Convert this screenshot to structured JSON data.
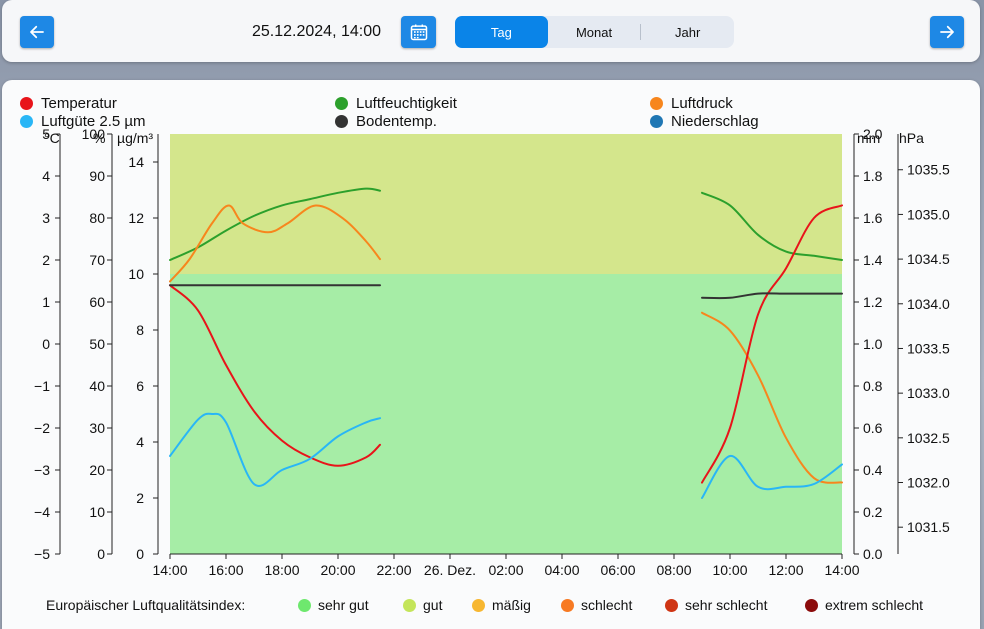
{
  "header": {
    "prev_label": "previous",
    "next_label": "next",
    "date_text": "25.12.2024, 14:00",
    "tabs": [
      {
        "label": "Tag",
        "active": true
      },
      {
        "label": "Monat",
        "active": false
      },
      {
        "label": "Jahr",
        "active": false
      }
    ],
    "icons": {
      "prev": "arrow-left-icon",
      "next": "arrow-right-icon",
      "calendar": "calendar-icon"
    }
  },
  "legend": [
    {
      "label": "Temperatur",
      "color": "#e8141a"
    },
    {
      "label": "Luftfeuchtigkeit",
      "color": "#2ca02c"
    },
    {
      "label": "Luftdruck",
      "color": "#f7861d"
    },
    {
      "label": "Luftgüte 2.5 µm",
      "color": "#29b6f6"
    },
    {
      "label": "Bodentemp.",
      "color": "#333333"
    },
    {
      "label": "Niederschlag",
      "color": "#1f77b4"
    }
  ],
  "axis_units": {
    "temp": "°C",
    "hum": "%",
    "pm": "µg/m³",
    "rain": "mm",
    "press": "hPa"
  },
  "aqi": {
    "title": "Europäischer Luftqualitätsindex:",
    "items": [
      {
        "label": "sehr gut",
        "color": "#6ee86e"
      },
      {
        "label": "gut",
        "color": "#c4e55a"
      },
      {
        "label": "mäßig",
        "color": "#f7b731"
      },
      {
        "label": "schlecht",
        "color": "#f77a23"
      },
      {
        "label": "sehr schlecht",
        "color": "#cf3514"
      },
      {
        "label": "extrem schlecht",
        "color": "#8b0b0b"
      }
    ]
  },
  "chart_data": {
    "type": "line",
    "x_ticks": [
      "14:00",
      "16:00",
      "18:00",
      "20:00",
      "22:00",
      "26. Dez.",
      "02:00",
      "04:00",
      "06:00",
      "08:00",
      "10:00",
      "12:00",
      "14:00"
    ],
    "xlim": [
      0,
      24
    ],
    "axes": {
      "temp": {
        "unit": "°C",
        "ylim": [
          -5,
          5
        ],
        "ticks": [
          "5",
          "4",
          "3",
          "2",
          "1",
          "0",
          "−1",
          "−2",
          "−3",
          "−4",
          "−5"
        ]
      },
      "hum": {
        "unit": "%",
        "ylim": [
          0,
          100
        ],
        "ticks": [
          "100",
          "90",
          "80",
          "70",
          "60",
          "50",
          "40",
          "30",
          "20",
          "10",
          "0"
        ]
      },
      "pm": {
        "unit": "µg/m³",
        "ylim": [
          0,
          15
        ],
        "ticks": [
          "14",
          "12",
          "10",
          "8",
          "6",
          "4",
          "2",
          "0"
        ]
      },
      "rain": {
        "unit": "mm",
        "ylim": [
          0,
          2.0
        ],
        "ticks": [
          "2.0",
          "1.8",
          "1.6",
          "1.4",
          "1.2",
          "1.0",
          "0.8",
          "0.6",
          "0.4",
          "0.2",
          "0.0"
        ]
      },
      "press": {
        "unit": "hPa",
        "ylim": [
          1031.2,
          1035.9
        ],
        "ticks": [
          "1035.5",
          "1035.0",
          "1034.5",
          "1034.0",
          "1033.5",
          "1033.0",
          "1032.5",
          "1032.0",
          "1031.5"
        ]
      }
    },
    "aqi_bands": [
      {
        "from": 0,
        "to": 10,
        "color": "#a6eda6"
      },
      {
        "from": 10,
        "to": 15,
        "color": "#d4e68c"
      }
    ],
    "series": [
      {
        "name": "Luftfeuchtigkeit",
        "axis": "hum",
        "color": "#2ca02c",
        "segments": [
          [
            [
              0,
              70.0
            ],
            [
              1,
              73.0
            ],
            [
              2,
              77.0
            ],
            [
              3,
              80.5
            ],
            [
              4,
              83.0
            ],
            [
              5,
              84.5
            ],
            [
              6,
              86.0
            ],
            [
              7,
              87.0
            ],
            [
              7.5,
              86.5
            ]
          ],
          [
            [
              19,
              86.0
            ],
            [
              20,
              83.0
            ],
            [
              21,
              76.0
            ],
            [
              22,
              72.0
            ],
            [
              23,
              71.0
            ],
            [
              24,
              70.0
            ]
          ]
        ]
      },
      {
        "name": "Luftdruck",
        "axis": "press",
        "color": "#f7861d",
        "segments": [
          [
            [
              0,
              1034.25
            ],
            [
              0.7,
              1034.5
            ],
            [
              1.5,
              1034.9
            ],
            [
              2.1,
              1035.1
            ],
            [
              2.6,
              1034.9
            ],
            [
              3.5,
              1034.8
            ],
            [
              4.2,
              1034.9
            ],
            [
              5.2,
              1035.1
            ],
            [
              6.2,
              1034.95
            ],
            [
              7,
              1034.7
            ],
            [
              7.5,
              1034.5
            ]
          ],
          [
            [
              19,
              1033.9
            ],
            [
              20,
              1033.7
            ],
            [
              21,
              1033.2
            ],
            [
              22,
              1032.5
            ],
            [
              23,
              1032.05
            ],
            [
              24,
              1032.0
            ]
          ]
        ]
      },
      {
        "name": "Temperatur",
        "axis": "temp",
        "color": "#e8141a",
        "segments": [
          [
            [
              0,
              1.4
            ],
            [
              1,
              0.8
            ],
            [
              2,
              -0.5
            ],
            [
              3,
              -1.6
            ],
            [
              4,
              -2.3
            ],
            [
              5,
              -2.7
            ],
            [
              6,
              -2.9
            ],
            [
              7,
              -2.7
            ],
            [
              7.5,
              -2.4
            ]
          ],
          [
            [
              19,
              -3.3
            ],
            [
              20,
              -2.0
            ],
            [
              21,
              0.7
            ],
            [
              22,
              1.8
            ],
            [
              23,
              3.0
            ],
            [
              24,
              3.3
            ]
          ]
        ]
      },
      {
        "name": "Luftgüte 2.5 µm",
        "axis": "pm",
        "color": "#29b6f6",
        "segments": [
          [
            [
              0,
              3.5
            ],
            [
              1,
              4.8
            ],
            [
              1.5,
              5.0
            ],
            [
              2,
              4.7
            ],
            [
              3,
              2.5
            ],
            [
              4,
              3.0
            ],
            [
              5,
              3.4
            ],
            [
              6,
              4.2
            ],
            [
              7,
              4.7
            ],
            [
              7.5,
              4.85
            ]
          ],
          [
            [
              19,
              2.0
            ],
            [
              20,
              3.5
            ],
            [
              21,
              2.4
            ],
            [
              22,
              2.4
            ],
            [
              23,
              2.5
            ],
            [
              24,
              3.2
            ]
          ]
        ]
      },
      {
        "name": "Bodentemp.",
        "axis": "temp",
        "color": "#333333",
        "segments": [
          [
            [
              0,
              1.4
            ],
            [
              7.5,
              1.4
            ]
          ],
          [
            [
              19,
              1.1
            ],
            [
              20,
              1.1
            ],
            [
              21,
              1.2
            ],
            [
              22,
              1.2
            ],
            [
              23,
              1.2
            ],
            [
              24,
              1.2
            ]
          ]
        ]
      }
    ]
  }
}
